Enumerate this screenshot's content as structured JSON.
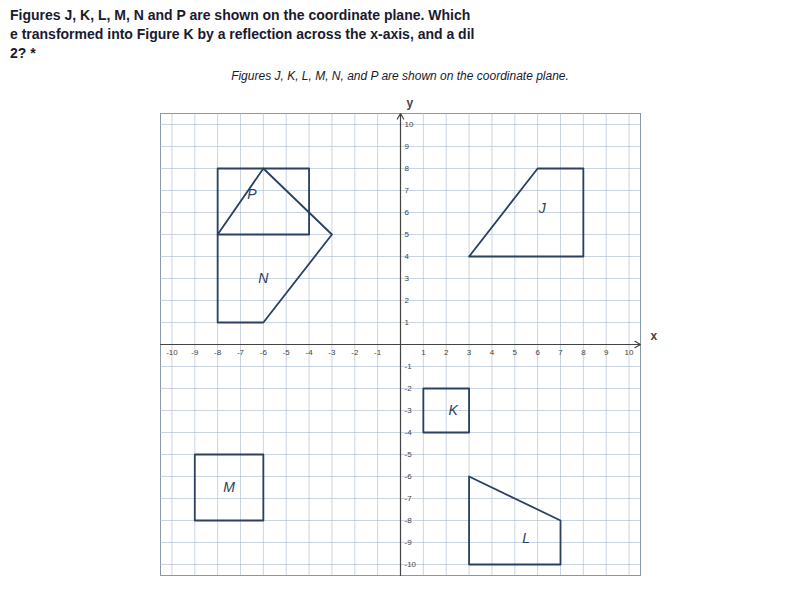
{
  "chart_data": {
    "type": "line",
    "title": [
      "Figures J, K, L, M, N and P are shown on the coordinate plane. Which",
      "e transformed into Figure K by a reflection across the x-axis, and a dil",
      "2? *"
    ],
    "subtitle": "Figures J, K, L, M, N, and P are shown on the coordinate plane.",
    "x_label": "x",
    "y_label": "y",
    "color": "#2a4060",
    "grid": true,
    "xlim": [
      -10.5,
      10.5
    ],
    "ylim": [
      -10.5,
      10.5
    ],
    "xticks": [
      -10,
      -9,
      -8,
      -7,
      -6,
      -5,
      -4,
      -3,
      -2,
      -1,
      1,
      2,
      3,
      4,
      5,
      6,
      7,
      8,
      9,
      10
    ],
    "yticks": [
      -10,
      -9,
      -8,
      -7,
      -6,
      -5,
      -4,
      -3,
      -2,
      -1,
      1,
      2,
      3,
      4,
      5,
      6,
      7,
      8,
      9,
      10
    ],
    "series": [
      {
        "name": "J",
        "x": [
          3,
          6,
          8,
          8,
          3
        ],
        "y": [
          4,
          8,
          8,
          4,
          4
        ]
      },
      {
        "name": "K",
        "x": [
          1,
          3,
          3,
          1,
          1
        ],
        "y": [
          -2,
          -2,
          -4,
          -4,
          -2
        ]
      },
      {
        "name": "L",
        "x": [
          3,
          3,
          7,
          7,
          3
        ],
        "y": [
          -6,
          -10,
          -10,
          -8,
          -6
        ]
      },
      {
        "name": "M",
        "x": [
          -9,
          -6,
          -6,
          -9,
          -9
        ],
        "y": [
          -5,
          -5,
          -8,
          -8,
          -5
        ]
      },
      {
        "name": "N",
        "x": [
          -8,
          -8,
          -6,
          -3,
          -6,
          -8
        ],
        "y": [
          1,
          5,
          8,
          5,
          1,
          1
        ]
      },
      {
        "name": "P",
        "x": [
          -8,
          -8,
          -4,
          -4,
          -8
        ],
        "y": [
          5,
          8,
          8,
          5,
          5
        ]
      }
    ],
    "annotations": [
      {
        "text": "J",
        "x": 6.2,
        "y": 6.2
      },
      {
        "text": "K",
        "x": 2.3,
        "y": -3.0
      },
      {
        "text": "L",
        "x": 5.5,
        "y": -8.8
      },
      {
        "text": "M",
        "x": -7.5,
        "y": -6.5
      },
      {
        "text": "N",
        "x": -6.0,
        "y": 3.0
      },
      {
        "text": "P",
        "x": -6.5,
        "y": 6.8
      }
    ]
  }
}
